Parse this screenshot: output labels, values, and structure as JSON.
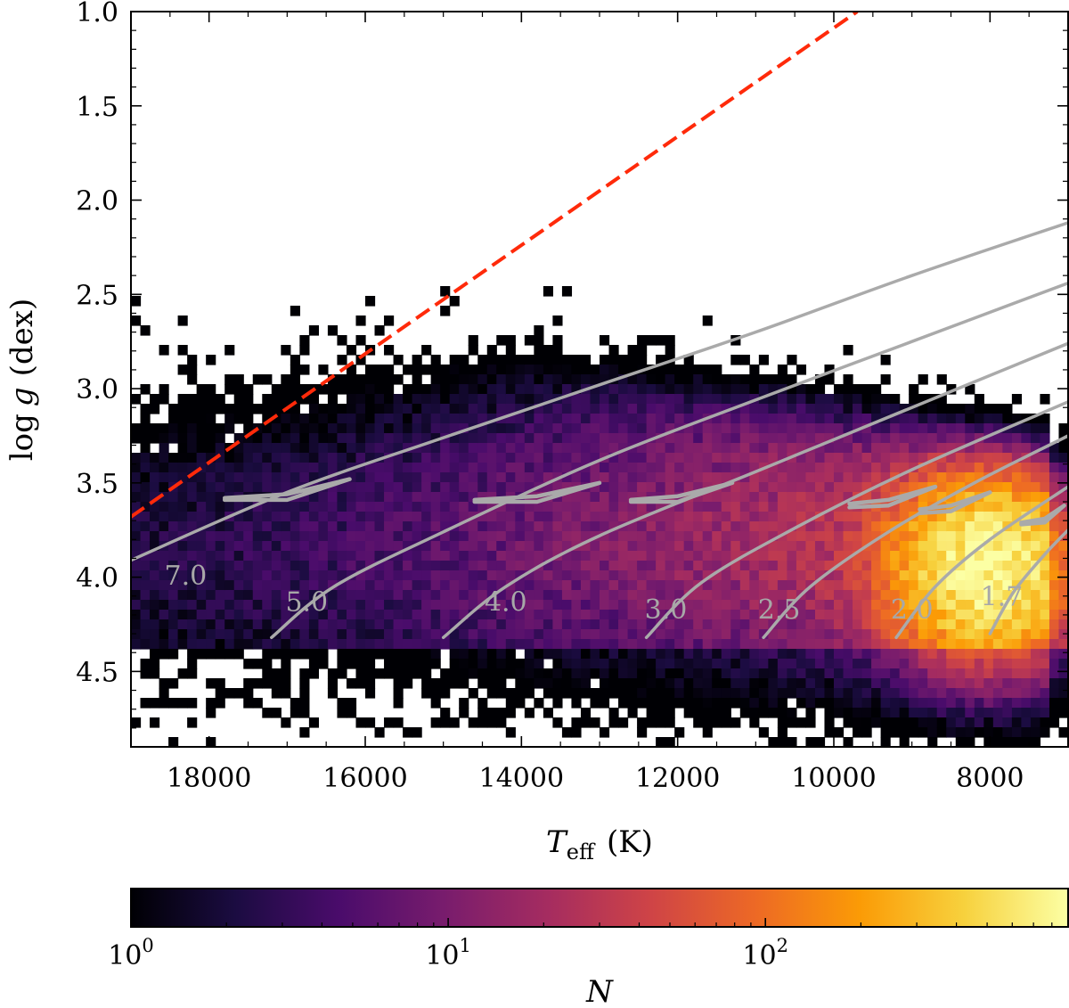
{
  "chart_data": {
    "type": "heatmap",
    "title": "",
    "xlabel": "T",
    "xlabel_sub": "eff",
    "xlabel_unit": "(K)",
    "ylabel": "log g (dex)",
    "ylabel_parts": {
      "log": "log",
      "g": "g",
      "unit": "(dex)"
    },
    "xlim": [
      19000,
      7000
    ],
    "ylim": [
      4.9,
      1.0
    ],
    "x_axis_inverted": true,
    "y_axis_inverted": true,
    "xticks": [
      18000,
      16000,
      14000,
      12000,
      10000,
      8000
    ],
    "xtick_labels": [
      "18000",
      "16000",
      "14000",
      "12000",
      "10000",
      "8000"
    ],
    "yticks": [
      1.0,
      1.5,
      2.0,
      2.5,
      3.0,
      3.5,
      4.0,
      4.5
    ],
    "ytick_labels": [
      "1.0",
      "1.5",
      "2.0",
      "2.5",
      "3.0",
      "3.5",
      "4.0",
      "4.5"
    ],
    "colorbar": {
      "label": "N",
      "scale": "log",
      "range": [
        1,
        900
      ],
      "ticks": [
        1,
        10,
        100
      ],
      "tick_bases": [
        "10",
        "10",
        "10"
      ],
      "tick_exponents": [
        "0",
        "1",
        "2"
      ],
      "colormap": "inferno",
      "colors": [
        "#000004",
        "#1b0c41",
        "#4a0c6b",
        "#781c6d",
        "#a52c60",
        "#cf4446",
        "#ed6925",
        "#fb9b06",
        "#f7d13d",
        "#fcffa4"
      ]
    },
    "density_model": {
      "description": "Star counts per (Teff, log g) bin; dense ridge along the main sequence, peak near Teff 8000 K, log g 4.0",
      "peak_count": 900,
      "peak_teff": 8000,
      "peak_logg": 3.95
    },
    "reference_line": {
      "style": "dashed",
      "color": "#ff2a0a",
      "points": [
        [
          19000,
          3.68
        ],
        [
          9700,
          1.0
        ]
      ]
    },
    "tracks_color": "#aaaaaa",
    "tracks": [
      {
        "mass_label": "7.0",
        "label_at": [
          18300,
          4.04
        ],
        "points": [
          [
            19000,
            3.91
          ],
          [
            17000,
            3.55
          ],
          [
            15000,
            3.26
          ],
          [
            13000,
            2.98
          ],
          [
            11000,
            2.7
          ],
          [
            9000,
            2.4
          ],
          [
            7000,
            2.12
          ]
        ]
      },
      {
        "mass_label": "5.0",
        "label_at": [
          16750,
          4.18
        ],
        "points": [
          [
            17200,
            4.32
          ],
          [
            16400,
            4.05
          ],
          [
            15000,
            3.76
          ],
          [
            13000,
            3.38
          ],
          [
            11000,
            3.06
          ],
          [
            9000,
            2.75
          ],
          [
            7000,
            2.44
          ]
        ]
      },
      {
        "mass_label": "4.0",
        "label_at": [
          14200,
          4.18
        ],
        "points": [
          [
            15000,
            4.32
          ],
          [
            14200,
            4.05
          ],
          [
            13000,
            3.78
          ],
          [
            11000,
            3.44
          ],
          [
            9000,
            3.1
          ],
          [
            7000,
            2.76
          ]
        ]
      },
      {
        "mass_label": "3.0",
        "label_at": [
          12150,
          4.22
        ],
        "points": [
          [
            12400,
            4.32
          ],
          [
            11700,
            4.03
          ],
          [
            10500,
            3.74
          ],
          [
            9000,
            3.43
          ],
          [
            7000,
            3.07
          ]
        ]
      },
      {
        "mass_label": "2.5",
        "label_at": [
          10700,
          4.22
        ],
        "points": [
          [
            10900,
            4.32
          ],
          [
            10300,
            4.05
          ],
          [
            9300,
            3.76
          ],
          [
            8200,
            3.5
          ],
          [
            7000,
            3.25
          ]
        ]
      },
      {
        "mass_label": "2.0",
        "label_at": [
          9000,
          4.22
        ],
        "points": [
          [
            9200,
            4.32
          ],
          [
            8700,
            4.05
          ],
          [
            8000,
            3.8
          ],
          [
            7000,
            3.52
          ]
        ]
      },
      {
        "mass_label": "1.7",
        "label_at": [
          7850,
          4.15
        ],
        "points": [
          [
            8000,
            4.3
          ],
          [
            7700,
            4.08
          ],
          [
            7300,
            3.88
          ],
          [
            7000,
            3.75
          ]
        ]
      }
    ],
    "hooks": [
      {
        "points": [
          [
            17800,
            3.58
          ],
          [
            17000,
            3.56
          ],
          [
            16200,
            3.48
          ],
          [
            17000,
            3.59
          ],
          [
            17800,
            3.59
          ]
        ]
      },
      {
        "points": [
          [
            14600,
            3.59
          ],
          [
            13800,
            3.57
          ],
          [
            13000,
            3.5
          ],
          [
            13800,
            3.6
          ],
          [
            14600,
            3.6
          ]
        ]
      },
      {
        "points": [
          [
            12600,
            3.59
          ],
          [
            12000,
            3.57
          ],
          [
            11300,
            3.5
          ],
          [
            12000,
            3.6
          ],
          [
            12600,
            3.6
          ]
        ]
      },
      {
        "points": [
          [
            9800,
            3.61
          ],
          [
            9300,
            3.59
          ],
          [
            8700,
            3.52
          ],
          [
            9300,
            3.62
          ],
          [
            9800,
            3.63
          ]
        ]
      },
      {
        "points": [
          [
            8900,
            3.64
          ],
          [
            8500,
            3.62
          ],
          [
            8000,
            3.55
          ],
          [
            8500,
            3.65
          ],
          [
            8900,
            3.66
          ]
        ]
      },
      {
        "points": [
          [
            7600,
            3.71
          ],
          [
            7300,
            3.69
          ],
          [
            7050,
            3.62
          ],
          [
            7300,
            3.71
          ],
          [
            7600,
            3.72
          ]
        ]
      }
    ]
  }
}
